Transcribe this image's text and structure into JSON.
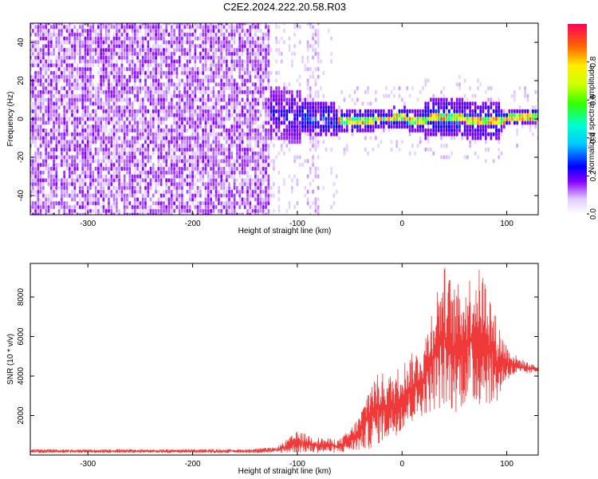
{
  "title": "C2E2.2024.222.20.58.R03",
  "chart_data": [
    {
      "type": "heatmap",
      "title": "C2E2.2024.222.20.58.R03",
      "xlabel": "Height of straight line (km)",
      "ylabel": "Frequency (Hz)",
      "xlim": [
        -355,
        130
      ],
      "ylim": [
        -50,
        50
      ],
      "xticks": [
        -300,
        -200,
        -100,
        0,
        100
      ],
      "yticks": [
        -40,
        -20,
        0,
        20,
        40
      ],
      "colorbar": {
        "label": "Normalized spectral amplitude",
        "range": [
          0,
          1
        ],
        "ticks": [
          0.0,
          0.2,
          0.4,
          0.6,
          0.8
        ]
      },
      "ridge": {
        "x": [
          -130,
          -110,
          -90,
          -70,
          -55,
          -40,
          -25,
          -10,
          0,
          10,
          25,
          40,
          60,
          80,
          100,
          130
        ],
        "y": [
          3,
          2,
          1,
          0,
          -2,
          -1,
          0,
          0,
          1,
          -1,
          0,
          1,
          0,
          -1,
          0,
          2
        ]
      }
    },
    {
      "type": "line",
      "xlabel": "Height of straight line (km)",
      "ylabel": "SNR (10 * v/v)",
      "xlim": [
        -355,
        130
      ],
      "ylim": [
        0,
        9700
      ],
      "xticks": [
        -300,
        -200,
        -100,
        0,
        100
      ],
      "yticks": [
        2000,
        4000,
        6000,
        8000
      ],
      "color": "#f03a3a",
      "envelope": {
        "x": [
          -355,
          -150,
          -120,
          -100,
          -80,
          -60,
          -50,
          -40,
          -30,
          -20,
          -10,
          0,
          10,
          20,
          30,
          40,
          50,
          60,
          70,
          80,
          90,
          100,
          110,
          120,
          130
        ],
        "min": [
          100,
          100,
          100,
          100,
          100,
          100,
          150,
          200,
          300,
          600,
          800,
          1200,
          1600,
          2000,
          2200,
          2400,
          2100,
          2500,
          2300,
          2600,
          2500,
          3800,
          4000,
          4100,
          4200
        ],
        "max": [
          300,
          300,
          400,
          1200,
          900,
          800,
          1300,
          2100,
          3900,
          4200,
          4100,
          4700,
          5200,
          5600,
          8000,
          9700,
          8600,
          8800,
          9600,
          9200,
          7000,
          5600,
          5000,
          4700,
          4500
        ]
      }
    }
  ]
}
